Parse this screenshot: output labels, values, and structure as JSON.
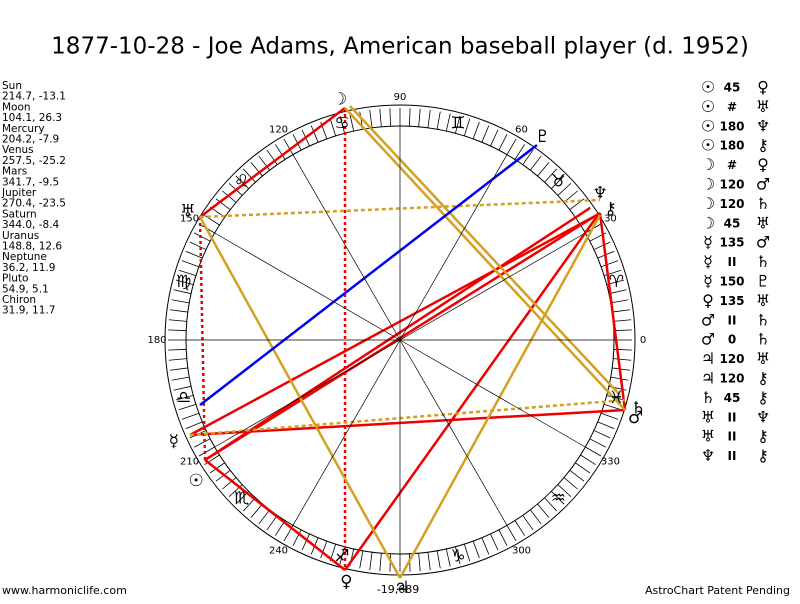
{
  "header": {
    "title": "1877-10-28 - Joe Adams, American baseball player (d. 1952)"
  },
  "planets": [
    {
      "name": "Sun",
      "coords": "214.7, -13.1",
      "glyph": "☉"
    },
    {
      "name": "Moon",
      "coords": "104.1, 26.3",
      "glyph": "☽"
    },
    {
      "name": "Mercury",
      "coords": "204.2, -7.9",
      "glyph": "☿"
    },
    {
      "name": "Venus",
      "coords": "257.5, -25.2",
      "glyph": "♀"
    },
    {
      "name": "Mars",
      "coords": "341.7, -9.5",
      "glyph": "♂"
    },
    {
      "name": "Jupiter",
      "coords": "270.4, -23.5",
      "glyph": "♃"
    },
    {
      "name": "Saturn",
      "coords": "344.0, -8.4",
      "glyph": "♄"
    },
    {
      "name": "Uranus",
      "coords": "148.8, 12.6",
      "glyph": "♅"
    },
    {
      "name": "Neptune",
      "coords": "36.2, 11.9",
      "glyph": "♆"
    },
    {
      "name": "Pluto",
      "coords": "54.9, 5.1",
      "glyph": "♇"
    },
    {
      "name": "Chiron",
      "coords": "31.9, 11.7",
      "glyph": "⚷"
    }
  ],
  "aspects": [
    [
      "☉",
      "45",
      "♀"
    ],
    [
      "☉",
      "#",
      "♅"
    ],
    [
      "☉",
      "180",
      "♆"
    ],
    [
      "☉",
      "180",
      "⚷"
    ],
    [
      "☽",
      "#",
      "♀"
    ],
    [
      "☽",
      "120",
      "♂"
    ],
    [
      "☽",
      "120",
      "♄"
    ],
    [
      "☽",
      "45",
      "♅"
    ],
    [
      "☿",
      "135",
      "♂"
    ],
    [
      "☿",
      "II",
      "♄"
    ],
    [
      "☿",
      "150",
      "♇"
    ],
    [
      "♀",
      "135",
      "♅"
    ],
    [
      "♂",
      "II",
      "♄"
    ],
    [
      "♂",
      "0",
      "♄"
    ],
    [
      "♃",
      "120",
      "♅"
    ],
    [
      "♃",
      "120",
      "⚷"
    ],
    [
      "♄",
      "45",
      "⚷"
    ],
    [
      "♅",
      "II",
      "♆"
    ],
    [
      "♅",
      "II",
      "⚷"
    ],
    [
      "♆",
      "II",
      "⚷"
    ]
  ],
  "degree_labels": [
    0,
    30,
    60,
    90,
    120,
    150,
    180,
    210,
    240,
    300,
    330
  ],
  "signs": [
    "♈",
    "♉",
    "♊",
    "♋",
    "♌",
    "♍",
    "♎",
    "♏",
    "♐",
    "♑",
    "♒",
    "♓"
  ],
  "footer": {
    "site": "www.harmoniclife.com",
    "code": "-19,689",
    "notice": "AstroChart Patent Pending"
  }
}
